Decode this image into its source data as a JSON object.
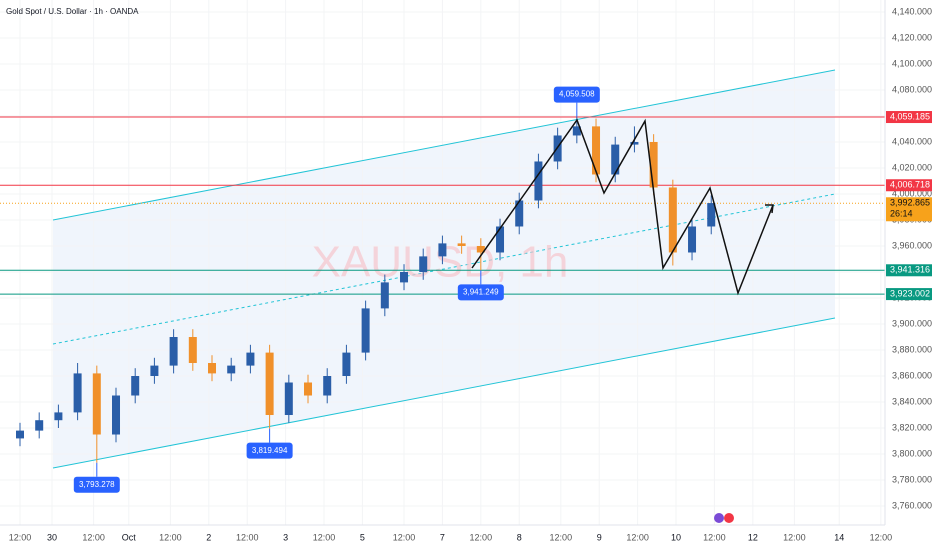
{
  "chart_data": {
    "type": "candlestick",
    "title": "Gold Spot / U.S. Dollar · 1h · OANDA",
    "watermark": "XAUUSD, 1h",
    "up_color": "#2a5ea8",
    "down_color": "#f0902a",
    "x": [
      0,
      6,
      12,
      18,
      24,
      30,
      36,
      42,
      48,
      54,
      60,
      66,
      72,
      78,
      84,
      90,
      96,
      102,
      108,
      114,
      120,
      126,
      132,
      138,
      144,
      150,
      156,
      162,
      168,
      174,
      180,
      186,
      192,
      198,
      204,
      210,
      216
    ],
    "open": [
      3812,
      3818,
      3826,
      3832,
      3862,
      3815,
      3845,
      3860,
      3868,
      3890,
      3870,
      3862,
      3868,
      3878,
      3830,
      3855,
      3845,
      3860,
      3878,
      3912,
      3932,
      3940,
      3952,
      3962,
      3960,
      3955,
      3975,
      3995,
      4025,
      4045,
      4052,
      4015,
      4038,
      4040,
      4005,
      3955,
      3975
    ],
    "high": [
      3824,
      3832,
      3838,
      3870,
      3868,
      3851,
      3866,
      3874,
      3896,
      3896,
      3876,
      3874,
      3884,
      3884,
      3861,
      3861,
      3866,
      3884,
      3918,
      3938,
      3946,
      3958,
      3968,
      3968,
      3966,
      3981,
      4001,
      4031,
      4051,
      4059.508,
      4058,
      4044,
      4052,
      4046,
      4011,
      3981,
      3999
    ],
    "low": [
      3806,
      3812,
      3820,
      3826,
      3793.278,
      3809,
      3839,
      3854,
      3862,
      3864,
      3856,
      3856,
      3862,
      3819.494,
      3824,
      3839,
      3839,
      3854,
      3872,
      3906,
      3926,
      3934,
      3946,
      3954,
      3941.249,
      3949,
      3969,
      3989,
      4019,
      4039,
      4009,
      4009,
      4032,
      3999,
      3945,
      3949,
      3969
    ],
    "close": [
      3818,
      3826,
      3832,
      3862,
      3815,
      3845,
      3860,
      3868,
      3890,
      3870,
      3862,
      3868,
      3878,
      3830,
      3855,
      3845,
      3860,
      3878,
      3912,
      3932,
      3940,
      3952,
      3962,
      3960,
      3955,
      3975,
      3995,
      4025,
      4045,
      4052,
      4015,
      4038,
      4040,
      4005,
      3955,
      3975,
      3993
    ],
    "xlim": [
      -6.25,
      270.3
    ],
    "ylim": [
      3745.4,
      4149.2
    ],
    "xticks": [
      {
        "value": 0,
        "label": "12:00"
      },
      {
        "value": 10,
        "label": "30"
      },
      {
        "value": 23,
        "label": "12:00"
      },
      {
        "value": 34,
        "label": "Oct"
      },
      {
        "value": 47,
        "label": "12:00"
      },
      {
        "value": 59,
        "label": "2"
      },
      {
        "value": 71,
        "label": "12:00"
      },
      {
        "value": 83,
        "label": "3"
      },
      {
        "value": 95,
        "label": "12:00"
      },
      {
        "value": 107,
        "label": "5"
      },
      {
        "value": 120,
        "label": "12:00"
      },
      {
        "value": 132,
        "label": "7"
      },
      {
        "value": 144,
        "label": "12:00"
      },
      {
        "value": 156,
        "label": "8"
      },
      {
        "value": 169,
        "label": "12:00"
      },
      {
        "value": 181,
        "label": "9"
      },
      {
        "value": 193,
        "label": "12:00"
      },
      {
        "value": 205,
        "label": "10"
      },
      {
        "value": 217,
        "label": "12:00"
      },
      {
        "value": 229,
        "label": "12"
      },
      {
        "value": 242,
        "label": "12:00"
      },
      {
        "value": 256,
        "label": "14"
      },
      {
        "value": 269,
        "label": "12:00"
      }
    ],
    "yticks": [
      {
        "value": 3760,
        "label": "3,760.000"
      },
      {
        "value": 3780,
        "label": "3,780.000"
      },
      {
        "value": 3800,
        "label": "3,800.000"
      },
      {
        "value": 3820,
        "label": "3,820.000"
      },
      {
        "value": 3840,
        "label": "3,840.000"
      },
      {
        "value": 3860,
        "label": "3,860.000"
      },
      {
        "value": 3880,
        "label": "3,880.000"
      },
      {
        "value": 3900,
        "label": "3,900.000"
      },
      {
        "value": 3920,
        "label": "3,920.000"
      },
      {
        "value": 3940,
        "label": "3,940.000"
      },
      {
        "value": 3960,
        "label": "3,960.000"
      },
      {
        "value": 3980,
        "label": "3,980.000"
      },
      {
        "value": 4000,
        "label": "4,000.000"
      },
      {
        "value": 4020,
        "label": "4,020.000"
      },
      {
        "value": 4040,
        "label": "4,040.000"
      },
      {
        "value": 4060,
        "label": "4,060.000"
      },
      {
        "value": 4080,
        "label": "4,080.000"
      },
      {
        "value": 4100,
        "label": "4,100.000"
      },
      {
        "value": 4120,
        "label": "4,120.000"
      },
      {
        "value": 4140,
        "label": "4,140.000"
      }
    ],
    "price_lines": [
      {
        "value": 4059.185,
        "label": "4,059.185",
        "color": "#f23645"
      },
      {
        "value": 4006.718,
        "label": "4,006.718",
        "color": "#f23645"
      },
      {
        "value": 3941.316,
        "label": "3,941.316",
        "color": "#089981"
      },
      {
        "value": 3923.002,
        "label": "3,923.002",
        "color": "#089981"
      }
    ],
    "last_price": {
      "value": 3992.865,
      "label": "3,992.865",
      "countdown": "26:14",
      "color": "#f7a21b"
    },
    "annotations": [
      {
        "x": 174,
        "value": 4059.508,
        "label": "4,059.508"
      },
      {
        "x": 144,
        "value": 3941.249,
        "label": "3,941.249"
      },
      {
        "x": 78,
        "value": 3819.494,
        "label": "3,819.494"
      },
      {
        "x": 24,
        "value": 3793.278,
        "label": "3,793.278"
      }
    ]
  }
}
